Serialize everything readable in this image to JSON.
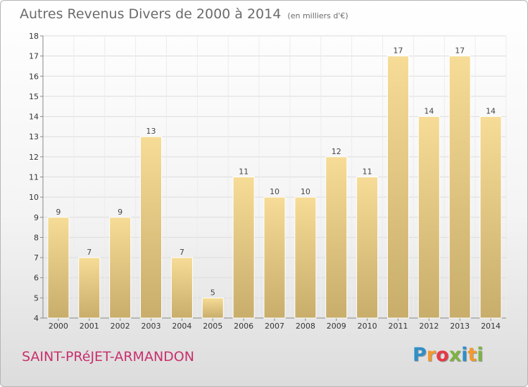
{
  "header": {
    "title": "Autres Revenus Divers de 2000 à 2014",
    "unit": "(en milliers d'€)"
  },
  "footer": {
    "commune": "SAINT-PRéJET-ARMANDON",
    "logo": [
      "P",
      "r",
      "o",
      "x",
      "i",
      "t",
      "i"
    ],
    "logo_colors": [
      "#2f8fc8",
      "#f29a2e",
      "#e63946",
      "#7cb342",
      "#2f8fc8",
      "#f29a2e",
      "#7cb342"
    ]
  },
  "chart_data": {
    "type": "bar",
    "categories": [
      "2000",
      "2001",
      "2002",
      "2003",
      "2004",
      "2005",
      "2006",
      "2007",
      "2008",
      "2009",
      "2010",
      "2011",
      "2012",
      "2013",
      "2014"
    ],
    "values": [
      9,
      7,
      9,
      13,
      7,
      5,
      11,
      10,
      10,
      12,
      11,
      17,
      14,
      17,
      14
    ],
    "ylim": [
      4,
      18
    ],
    "yticks": [
      4,
      5,
      6,
      7,
      8,
      9,
      10,
      11,
      12,
      13,
      14,
      15,
      16,
      17,
      18
    ],
    "grid": true,
    "bar_color": "#e9cf8b"
  }
}
